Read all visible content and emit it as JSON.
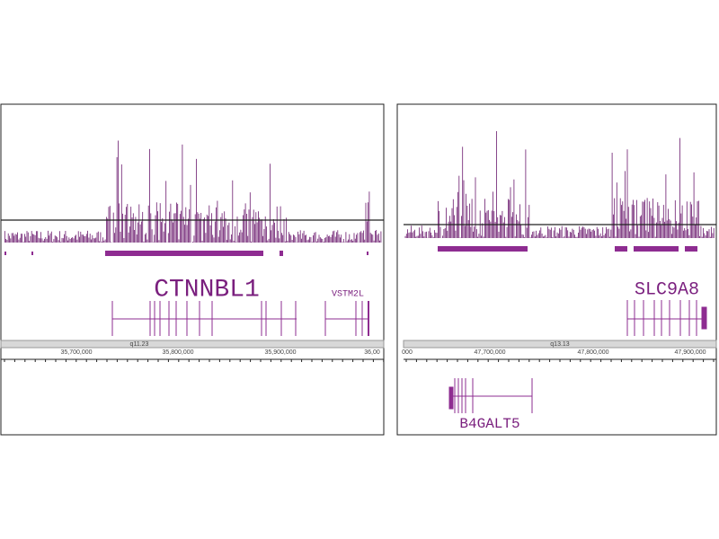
{
  "panels": [
    {
      "genes": [
        "CTNNBL1",
        "VSTM2L"
      ],
      "band": "q11.23",
      "ticks": [
        "35,700,000",
        "35,800,000",
        "35,900,000",
        "36,00"
      ]
    },
    {
      "genes": [
        "SLC9A8",
        "B4GALT5"
      ],
      "band": "q13.13",
      "ticks": [
        "000",
        "47,700,000",
        "47,800,000",
        "47,900,000"
      ]
    }
  ]
}
